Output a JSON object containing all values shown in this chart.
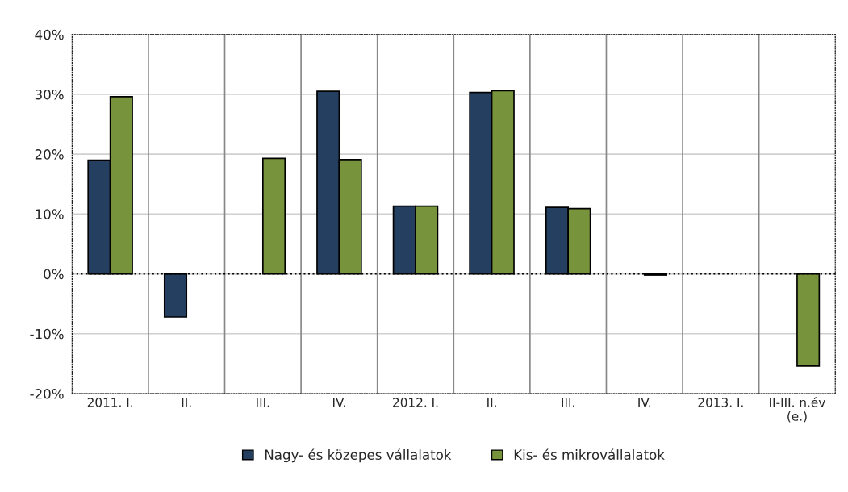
{
  "chart_data": {
    "type": "bar",
    "categories": [
      "2011. I.",
      "II.",
      "III.",
      "IV.",
      "2012. I.",
      "II.",
      "III.",
      "IV.",
      "2013. I.",
      "II-III. n.év\n(e.)"
    ],
    "series": [
      {
        "name": "Nagy- és közepes vállalatok",
        "color": "#243f60",
        "values": [
          19.0,
          -7.2,
          null,
          30.5,
          11.3,
          30.3,
          11.1,
          null,
          null,
          null
        ]
      },
      {
        "name": "Kis- és mikrovállalatok",
        "color": "#77933c",
        "values": [
          29.6,
          null,
          19.3,
          19.1,
          11.3,
          30.6,
          10.9,
          -0.2,
          null,
          -15.4
        ]
      }
    ],
    "ylim": [
      -20,
      40
    ],
    "yticks": [
      {
        "value": -20,
        "label": "-20%"
      },
      {
        "value": -10,
        "label": "-10%"
      },
      {
        "value": 0,
        "label": "0%"
      },
      {
        "value": 10,
        "label": "10%"
      },
      {
        "value": 20,
        "label": "20%"
      },
      {
        "value": 30,
        "label": "30%"
      },
      {
        "value": 40,
        "label": "40%"
      }
    ],
    "ref_lines": [
      {
        "axis": "y",
        "value": 0,
        "color": "#000000",
        "line_style": "dotted"
      }
    ],
    "grid": true,
    "legend": "bottom"
  }
}
